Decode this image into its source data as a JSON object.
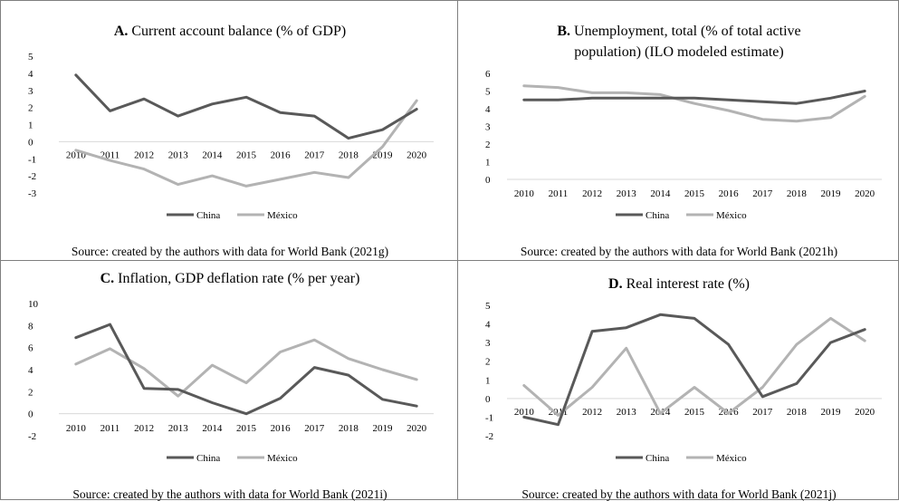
{
  "chart_data": [
    {
      "type": "line",
      "title_letter": "A.",
      "title_lines": [
        "Current account balance (% of GDP)"
      ],
      "categories": [
        "2010",
        "2011",
        "2012",
        "2013",
        "2014",
        "2015",
        "2016",
        "2017",
        "2018",
        "2019",
        "2020"
      ],
      "series": [
        {
          "name": "China",
          "color": "#595959",
          "values": [
            3.9,
            1.8,
            2.5,
            1.5,
            2.2,
            2.6,
            1.7,
            1.5,
            0.2,
            0.7,
            1.9
          ]
        },
        {
          "name": "México",
          "color": "#b3b3b3",
          "values": [
            -0.5,
            -1.1,
            -1.6,
            -2.5,
            -2.0,
            -2.6,
            -2.2,
            -1.8,
            -2.1,
            -0.3,
            2.4
          ]
        }
      ],
      "ylim": [
        -3,
        5
      ],
      "yticks": [
        -3,
        -2,
        -1,
        0,
        1,
        2,
        3,
        4,
        5
      ],
      "xlabels_at_zero": true,
      "grid": false,
      "legend": "bottom",
      "source": "Source: created by the authors with data for World Bank (2021g)"
    },
    {
      "type": "line",
      "title_letter": "B.",
      "title_lines": [
        "Unemployment, total (% of total active",
        "population) (ILO modeled estimate)"
      ],
      "categories": [
        "2010",
        "2011",
        "2012",
        "2013",
        "2014",
        "2015",
        "2016",
        "2017",
        "2018",
        "2019",
        "2020"
      ],
      "series": [
        {
          "name": "China",
          "color": "#595959",
          "values": [
            4.5,
            4.5,
            4.6,
            4.6,
            4.6,
            4.6,
            4.5,
            4.4,
            4.3,
            4.6,
            5.0
          ]
        },
        {
          "name": "México",
          "color": "#b3b3b3",
          "values": [
            5.3,
            5.2,
            4.9,
            4.9,
            4.8,
            4.3,
            3.9,
            3.4,
            3.3,
            3.5,
            4.7
          ]
        }
      ],
      "ylim": [
        0,
        6
      ],
      "yticks": [
        0,
        1,
        2,
        3,
        4,
        5,
        6
      ],
      "xlabels_at_zero": false,
      "grid": false,
      "legend": "bottom",
      "source": "Source: created by the authors with data for World Bank (2021h)"
    },
    {
      "type": "line",
      "title_letter": "C.",
      "title_lines": [
        "Inflation, GDP deflation rate (% per year)"
      ],
      "categories": [
        "2010",
        "2011",
        "2012",
        "2013",
        "2014",
        "2015",
        "2016",
        "2017",
        "2018",
        "2019",
        "2020"
      ],
      "series": [
        {
          "name": "China",
          "color": "#595959",
          "values": [
            6.9,
            8.1,
            2.3,
            2.2,
            1.0,
            0.0,
            1.4,
            4.2,
            3.5,
            1.3,
            0.7
          ]
        },
        {
          "name": "México",
          "color": "#b3b3b3",
          "values": [
            4.5,
            5.9,
            4.1,
            1.6,
            4.4,
            2.8,
            5.6,
            6.7,
            5.0,
            4.0,
            3.1
          ]
        }
      ],
      "ylim": [
        -2,
        10
      ],
      "yticks": [
        -2,
        0,
        2,
        4,
        6,
        8,
        10
      ],
      "xlabels_at_zero": false,
      "grid": false,
      "legend": "bottom",
      "source": "Source: created by the authors with data for World Bank (2021i)"
    },
    {
      "type": "line",
      "title_letter": "D.",
      "title_lines": [
        "Real interest rate (%)"
      ],
      "categories": [
        "2010",
        "2011",
        "2012",
        "2013",
        "2014",
        "2015",
        "2016",
        "2017",
        "2018",
        "2019",
        "2020"
      ],
      "series": [
        {
          "name": "China",
          "color": "#595959",
          "values": [
            -1.0,
            -1.4,
            3.6,
            3.8,
            4.5,
            4.3,
            2.9,
            0.1,
            0.8,
            3.0,
            3.7
          ]
        },
        {
          "name": "México",
          "color": "#b3b3b3",
          "values": [
            0.7,
            -0.9,
            0.6,
            2.7,
            -0.8,
            0.6,
            -0.8,
            0.6,
            2.9,
            4.3,
            3.1
          ]
        }
      ],
      "ylim": [
        -2,
        5
      ],
      "yticks": [
        -2,
        -1,
        0,
        1,
        2,
        3,
        4,
        5
      ],
      "xlabels_at_zero": true,
      "grid": false,
      "legend": "bottom",
      "source": "Source: created by the authors with data for World Bank (2021j)"
    }
  ]
}
